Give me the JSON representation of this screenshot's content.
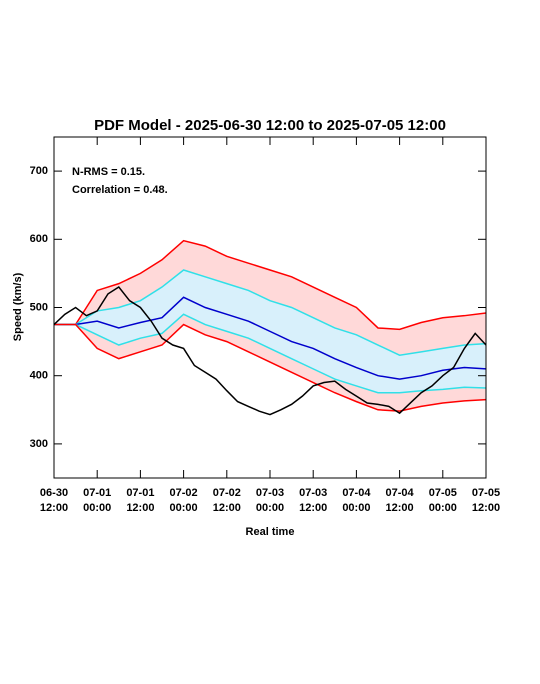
{
  "chart_data": {
    "type": "line",
    "title": "PDF Model - 2025-06-30 12:00 to 2025-07-05 12:00",
    "annotations": [
      "N-RMS = 0.15.",
      "Correlation = 0.48."
    ],
    "ylabel": "Speed (km/s)",
    "xlabel": "Real time",
    "ylim": [
      250,
      750
    ],
    "yticks": [
      300,
      400,
      500,
      600,
      700
    ],
    "xlim": [
      "06-30 12:00",
      "07-05 12:00"
    ],
    "xticks": [
      {
        "value": "06-30 12:00",
        "label": "06-30\n12:00"
      },
      {
        "value": "07-01 00:00",
        "label": "07-01\n00:00"
      },
      {
        "value": "07-01 12:00",
        "label": "07-01\n12:00"
      },
      {
        "value": "07-02 00:00",
        "label": "07-02\n00:00"
      },
      {
        "value": "07-02 12:00",
        "label": "07-02\n12:00"
      },
      {
        "value": "07-03 00:00",
        "label": "07-03\n00:00"
      },
      {
        "value": "07-03 12:00",
        "label": "07-03\n12:00"
      },
      {
        "value": "07-04 00:00",
        "label": "07-04\n00:00"
      },
      {
        "value": "07-04 12:00",
        "label": "07-04\n12:00"
      },
      {
        "value": "07-05 00:00",
        "label": "07-05\n00:00"
      },
      {
        "value": "07-05 12:00",
        "label": "07-05\n12:00"
      }
    ],
    "x": [
      "06-30 12:00",
      "06-30 18:00",
      "07-01 00:00",
      "07-01 06:00",
      "07-01 12:00",
      "07-01 18:00",
      "07-02 00:00",
      "07-02 06:00",
      "07-02 12:00",
      "07-02 18:00",
      "07-03 00:00",
      "07-03 06:00",
      "07-03 12:00",
      "07-03 18:00",
      "07-04 00:00",
      "07-04 06:00",
      "07-04 12:00",
      "07-04 18:00",
      "07-05 00:00",
      "07-05 06:00",
      "07-05 12:00"
    ],
    "bands": [
      {
        "between": [
          0,
          4
        ],
        "color": "#ffd9d9"
      },
      {
        "between": [
          1,
          3
        ],
        "color": "#d8f0fb"
      }
    ],
    "series": [
      {
        "color": "#ff0000",
        "values": [
          475,
          475,
          525,
          535,
          550,
          570,
          598,
          590,
          575,
          565,
          555,
          545,
          530,
          515,
          500,
          470,
          468,
          478,
          485,
          488,
          492
        ]
      },
      {
        "color": "#30e0e8",
        "values": [
          475,
          475,
          495,
          500,
          510,
          530,
          555,
          545,
          535,
          525,
          510,
          500,
          485,
          470,
          460,
          445,
          430,
          435,
          440,
          445,
          447
        ]
      },
      {
        "color": "#0000cc",
        "values": [
          475,
          475,
          480,
          470,
          478,
          485,
          515,
          500,
          490,
          480,
          465,
          450,
          440,
          425,
          412,
          400,
          395,
          400,
          408,
          412,
          410
        ]
      },
      {
        "color": "#30e0e8",
        "values": [
          475,
          475,
          460,
          445,
          455,
          462,
          490,
          475,
          465,
          455,
          440,
          425,
          410,
          395,
          385,
          375,
          375,
          378,
          380,
          383,
          382
        ]
      },
      {
        "color": "#ff0000",
        "values": [
          475,
          475,
          440,
          425,
          435,
          445,
          475,
          460,
          450,
          435,
          420,
          405,
          390,
          375,
          362,
          350,
          348,
          355,
          360,
          363,
          365
        ]
      },
      {
        "color": "#000000",
        "x": [
          "06-30 12:00",
          "06-30 15:00",
          "06-30 18:00",
          "06-30 21:00",
          "07-01 00:00",
          "07-01 03:00",
          "07-01 06:00",
          "07-01 09:00",
          "07-01 12:00",
          "07-01 15:00",
          "07-01 18:00",
          "07-01 21:00",
          "07-02 00:00",
          "07-02 03:00",
          "07-02 06:00",
          "07-02 09:00",
          "07-02 12:00",
          "07-02 15:00",
          "07-02 18:00",
          "07-02 21:00",
          "07-03 00:00",
          "07-03 03:00",
          "07-03 06:00",
          "07-03 09:00",
          "07-03 12:00",
          "07-03 15:00",
          "07-03 18:00",
          "07-03 21:00",
          "07-04 00:00",
          "07-04 03:00",
          "07-04 06:00",
          "07-04 09:00",
          "07-04 12:00",
          "07-04 15:00",
          "07-04 18:00",
          "07-04 21:00",
          "07-05 00:00",
          "07-05 03:00",
          "07-05 06:00",
          "07-05 09:00",
          "07-05 12:00"
        ],
        "values": [
          475,
          490,
          500,
          488,
          495,
          520,
          530,
          510,
          500,
          480,
          455,
          445,
          440,
          415,
          405,
          395,
          378,
          362,
          355,
          348,
          343,
          350,
          358,
          370,
          385,
          390,
          392,
          380,
          370,
          360,
          358,
          355,
          345,
          360,
          375,
          385,
          400,
          412,
          440,
          462,
          445
        ]
      }
    ]
  }
}
